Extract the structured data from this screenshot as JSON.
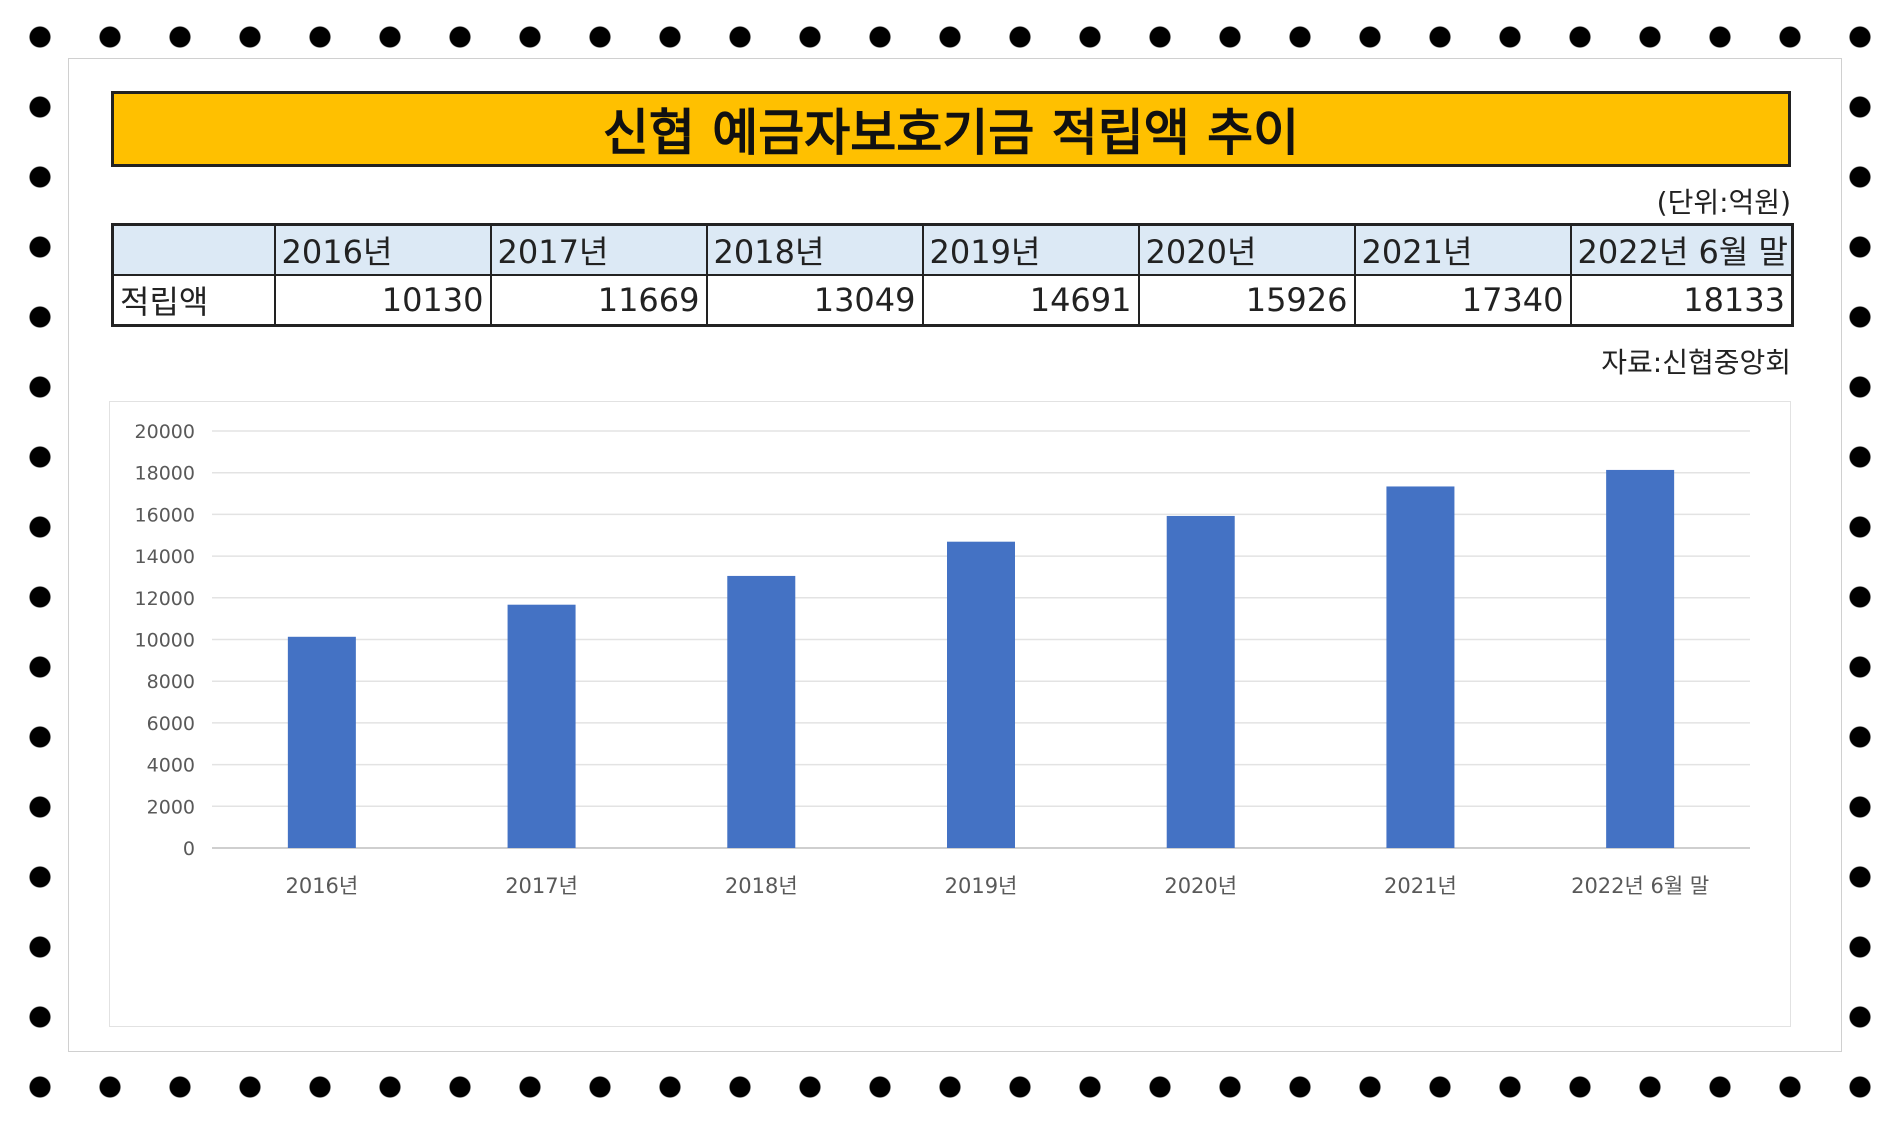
{
  "title": "신협 예금자보호기금 적립액 추이",
  "unit_note": "(단위:억원)",
  "source_note": "자료:신협중앙회",
  "table": {
    "row_label": "적립액",
    "headers": [
      "2016년",
      "2017년",
      "2018년",
      "2019년",
      "2020년",
      "2021년",
      "2022년 6월 말"
    ],
    "values": [
      "10130",
      "11669",
      "13049",
      "14691",
      "15926",
      "17340",
      "18133"
    ]
  },
  "colors": {
    "title_bg": "#ffc000",
    "table_header_bg": "#dce9f5",
    "bar": "#4472c4"
  },
  "chart_data": {
    "type": "bar",
    "categories": [
      "2016년",
      "2017년",
      "2018년",
      "2019년",
      "2020년",
      "2021년",
      "2022년 6월 말"
    ],
    "values": [
      10130,
      11669,
      13049,
      14691,
      15926,
      17340,
      18133
    ],
    "ylim": [
      0,
      20000
    ],
    "yticks": [
      0,
      2000,
      4000,
      6000,
      8000,
      10000,
      12000,
      14000,
      16000,
      18000,
      20000
    ],
    "grid": true,
    "legend": "none"
  }
}
